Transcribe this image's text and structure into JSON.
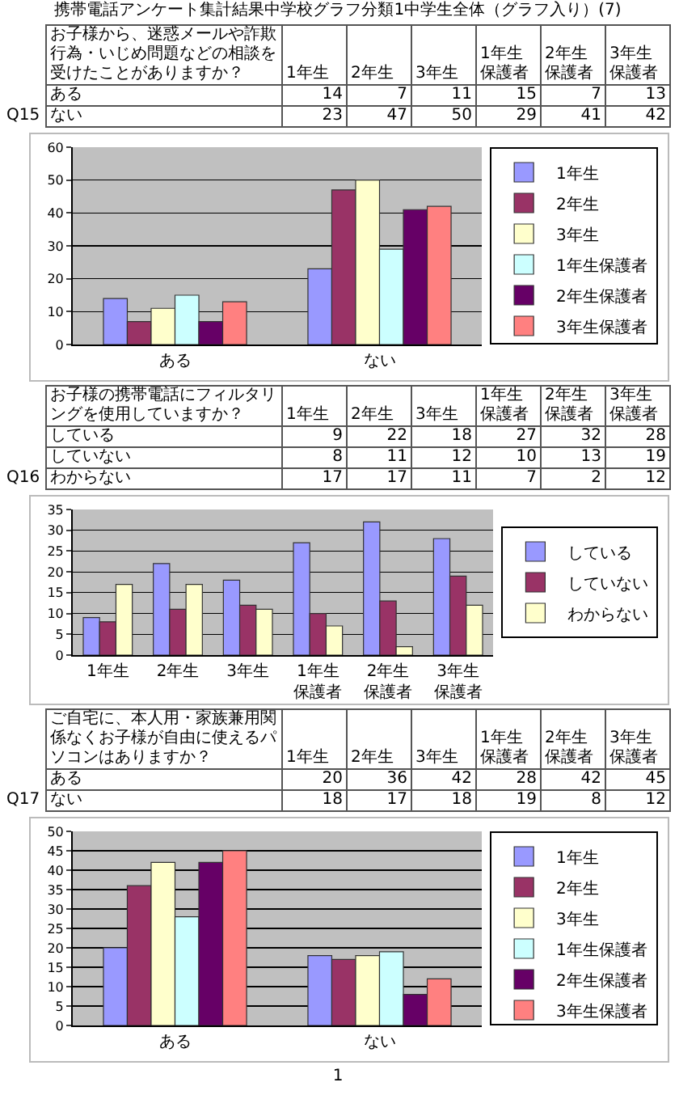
{
  "chart_data": [
    {
      "type": "other",
      "title": "Q15",
      "subtitle": "お子様から、迷惑メールや詐欺行為・いじめ問題などの相談を受けたことがありますか？",
      "annotations": [
        "携帯電話アンケート集計結果中学校グラフ分類1中学生全体（グラフ入り）(7)"
      ],
      "categories": [
        "1年生",
        "2年生",
        "3年生",
        "1年生保護者",
        "2年生保護者",
        "3年生保護者"
      ],
      "series": [
        {
          "name": "ある",
          "values": [
            14,
            7,
            11,
            15,
            7,
            13
          ]
        },
        {
          "name": "ない",
          "values": [
            23,
            47,
            50,
            29,
            41,
            42
          ]
        }
      ],
      "data_labels": true
    },
    {
      "type": "bar",
      "categories": [
        "ある",
        "ない"
      ],
      "series": [
        {
          "name": "1年生",
          "color": "#9999ff",
          "values": [
            14,
            23
          ]
        },
        {
          "name": "2年生",
          "color": "#993366",
          "values": [
            7,
            47
          ]
        },
        {
          "name": "3年生",
          "color": "#ffffcc",
          "values": [
            11,
            50
          ]
        },
        {
          "name": "1年生保護者",
          "color": "#ccffff",
          "values": [
            15,
            29
          ]
        },
        {
          "name": "2年生保護者",
          "color": "#660066",
          "values": [
            7,
            41
          ]
        },
        {
          "name": "3年生保護者",
          "color": "#ff8080",
          "values": [
            13,
            42
          ]
        }
      ],
      "ylim": [
        0,
        60
      ],
      "yticks": [
        0,
        10,
        20,
        30,
        40,
        50,
        60
      ],
      "grid": "y",
      "legend": "right"
    },
    {
      "type": "other",
      "title": "Q16",
      "subtitle": "お子様の携帯電話にフィルタリングを使用していますか？",
      "categories": [
        "1年生",
        "2年生",
        "3年生",
        "1年生保護者",
        "2年生保護者",
        "3年生保護者"
      ],
      "series": [
        {
          "name": "している",
          "values": [
            9,
            22,
            18,
            27,
            32,
            28
          ]
        },
        {
          "name": "していない",
          "values": [
            8,
            11,
            12,
            10,
            13,
            19
          ]
        },
        {
          "name": "わからない",
          "values": [
            17,
            17,
            11,
            7,
            2,
            12
          ]
        }
      ],
      "data_labels": true
    },
    {
      "type": "bar",
      "categories": [
        "1年生",
        "2年生",
        "3年生",
        "1年生保護者",
        "2年生保護者",
        "3年生保護者"
      ],
      "series": [
        {
          "name": "している",
          "color": "#9999ff",
          "values": [
            9,
            22,
            18,
            27,
            32,
            28
          ]
        },
        {
          "name": "していない",
          "color": "#993366",
          "values": [
            8,
            11,
            12,
            10,
            13,
            19
          ]
        },
        {
          "name": "わからない",
          "color": "#ffffcc",
          "values": [
            17,
            17,
            11,
            7,
            2,
            12
          ]
        }
      ],
      "ylim": [
        0,
        35
      ],
      "yticks": [
        0,
        5,
        10,
        15,
        20,
        25,
        30,
        35
      ],
      "grid": "y",
      "legend": "right"
    },
    {
      "type": "other",
      "title": "Q17",
      "subtitle": "ご自宅に、本人用・家族兼用関係なくお子様が自由に使えるパソコンはありますか？",
      "categories": [
        "1年生",
        "2年生",
        "3年生",
        "1年生保護者",
        "2年生保護者",
        "3年生保護者"
      ],
      "series": [
        {
          "name": "ある",
          "values": [
            20,
            36,
            42,
            28,
            42,
            45
          ]
        },
        {
          "name": "ない",
          "values": [
            18,
            17,
            18,
            19,
            8,
            12
          ]
        }
      ],
      "data_labels": true
    },
    {
      "type": "bar",
      "annotations": [
        "1"
      ],
      "categories": [
        "ある",
        "ない"
      ],
      "series": [
        {
          "name": "1年生",
          "color": "#9999ff",
          "values": [
            20,
            18
          ]
        },
        {
          "name": "2年生",
          "color": "#993366",
          "values": [
            36,
            17
          ]
        },
        {
          "name": "3年生",
          "color": "#ffffcc",
          "values": [
            42,
            18
          ]
        },
        {
          "name": "1年生保護者",
          "color": "#ccffff",
          "values": [
            28,
            19
          ]
        },
        {
          "name": "2年生保護者",
          "color": "#660066",
          "values": [
            42,
            8
          ]
        },
        {
          "name": "3年生保護者",
          "color": "#ff8080",
          "values": [
            45,
            12
          ]
        }
      ],
      "ylim": [
        0,
        50
      ],
      "yticks": [
        0,
        5,
        10,
        15,
        20,
        25,
        30,
        35,
        40,
        45,
        50
      ],
      "grid": "y",
      "legend": "bottom right"
    }
  ]
}
